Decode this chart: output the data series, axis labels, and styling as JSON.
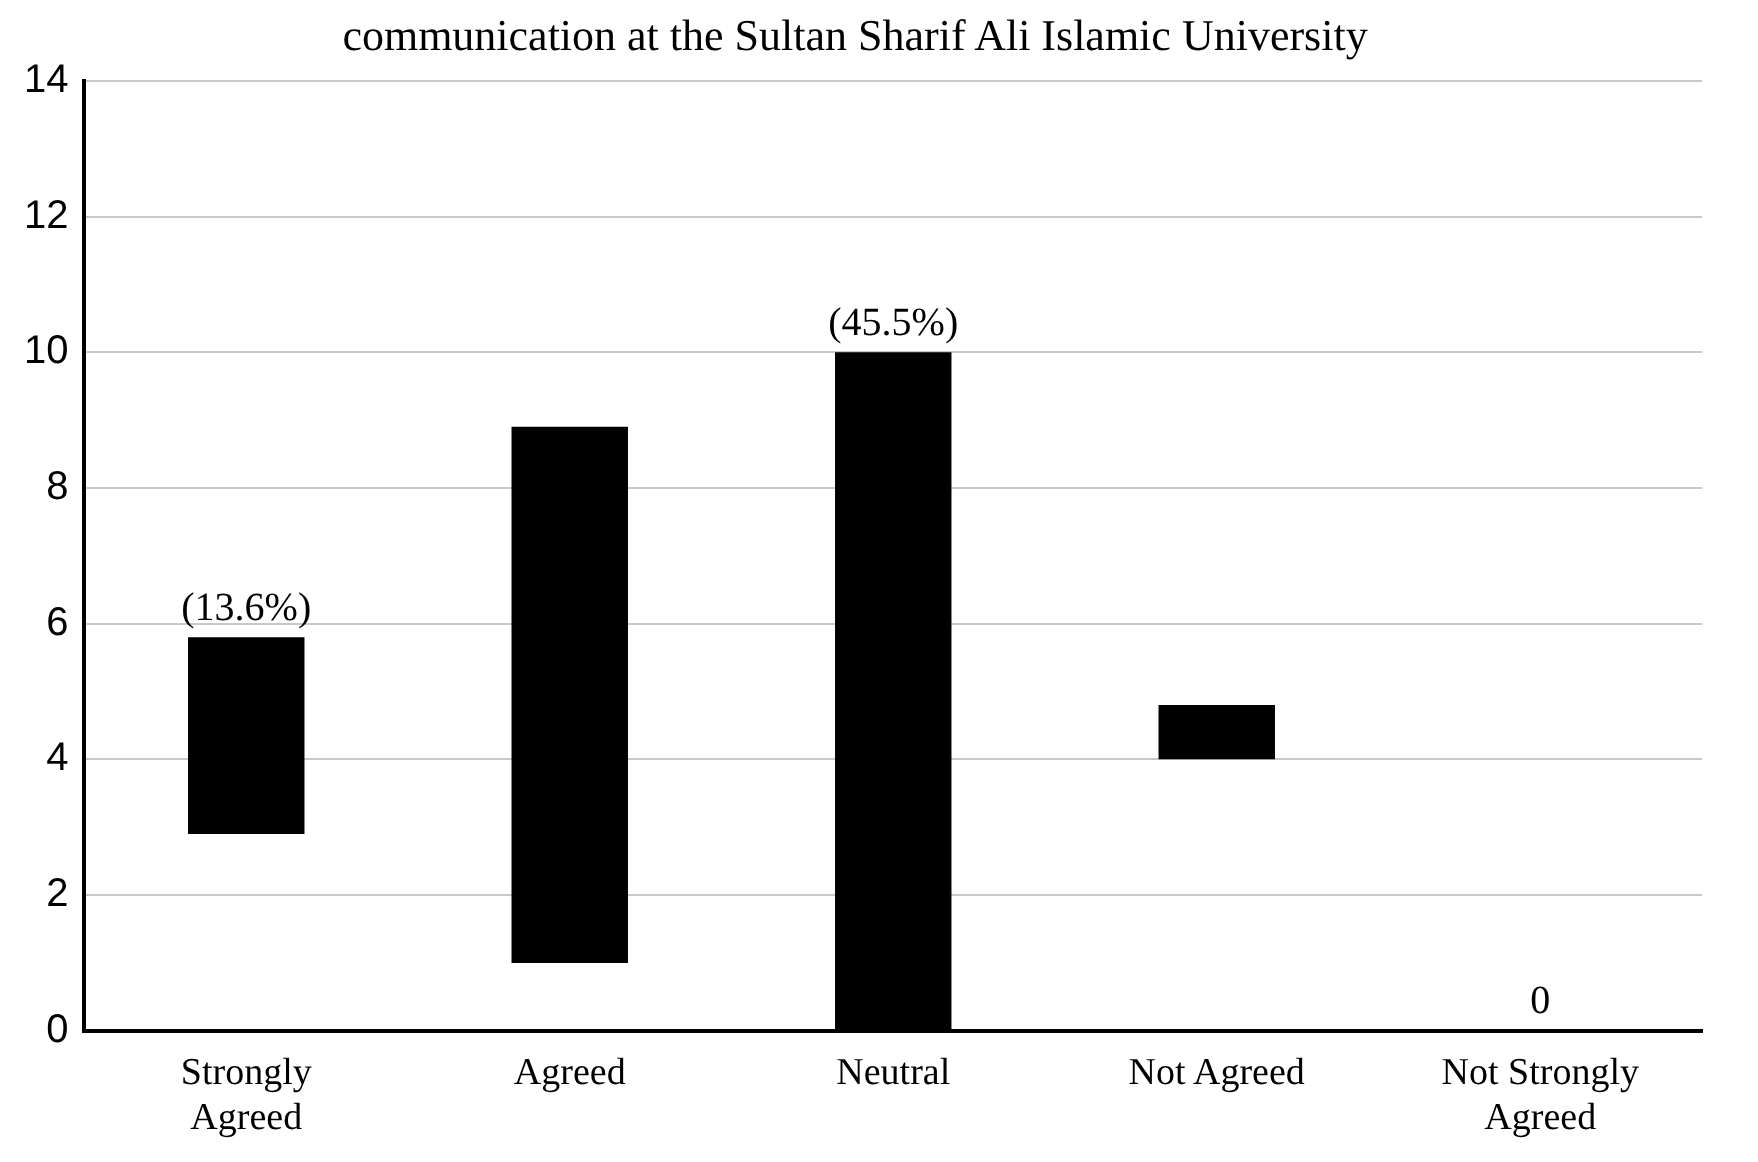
{
  "chart_data": {
    "type": "bar",
    "title": "communication at the Sultan Sharif Ali Islamic University",
    "categories": [
      "Strongly Agreed",
      "Agreed",
      "Neutral",
      "Not Agreed",
      "Not Strongly Agreed"
    ],
    "values": [
      2.9,
      7.9,
      10,
      0.8,
      0
    ],
    "base": [
      2.9,
      1.0,
      0,
      4.0,
      null
    ],
    "value_labels": [
      null,
      null,
      null,
      null,
      "0"
    ],
    "annotations": [
      {
        "text": "(13.6%)",
        "x": "Strongly Agreed",
        "y": 5.8
      },
      {
        "text": "(45.5%)",
        "x": "Neutral",
        "y": 10
      }
    ],
    "color": "#000000",
    "ylim": [
      0,
      14
    ],
    "yticks": [
      0,
      2,
      4,
      6,
      8,
      10,
      12,
      14
    ],
    "grid": "y"
  }
}
